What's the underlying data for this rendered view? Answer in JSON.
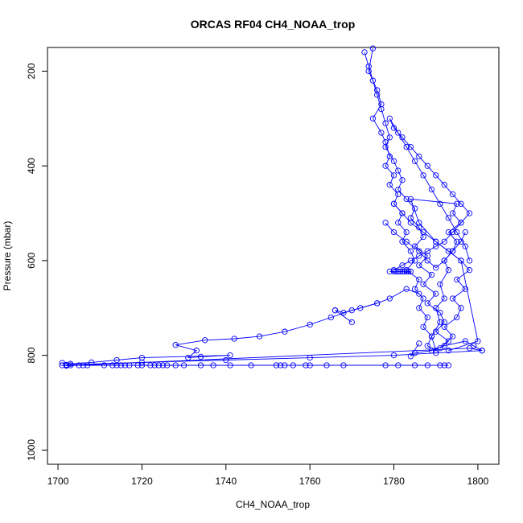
{
  "chart_data": {
    "type": "line",
    "title": "ORCAS RF04 CH4_NOAA_trop",
    "xlabel": "CH4_NOAA_trop",
    "ylabel": "Pressure (mbar)",
    "xlim": [
      1697.5,
      1805
    ],
    "ylim": [
      150,
      1030
    ],
    "y_reversed": true,
    "x_ticks": [
      1700,
      1720,
      1740,
      1760,
      1780,
      1800
    ],
    "y_ticks": [
      200,
      400,
      600,
      800,
      1000
    ],
    "grid": false,
    "legend": "none",
    "series_color": "#0000ff",
    "series": [
      {
        "x": [
          1775,
          1774,
          1776,
          1777,
          1775,
          1777,
          1778,
          1779,
          1778,
          1780,
          1779,
          1781,
          1780,
          1782,
          1781,
          1783,
          1782,
          1784,
          1785,
          1783,
          1786,
          1785,
          1787,
          1786,
          1788,
          1787,
          1789,
          1788,
          1790,
          1789,
          1791,
          1790,
          1792,
          1791,
          1793,
          1792,
          1794,
          1795,
          1793,
          1796,
          1794,
          1795,
          1784,
          1786,
          1790,
          1796,
          1800,
          1793
        ],
        "y": [
          152,
          200,
          240,
          270,
          300,
          330,
          350,
          380,
          400,
          420,
          440,
          460,
          480,
          500,
          520,
          540,
          560,
          580,
          600,
          620,
          640,
          660,
          680,
          700,
          720,
          740,
          760,
          780,
          790,
          760,
          730,
          700,
          680,
          650,
          620,
          600,
          580,
          560,
          540,
          520,
          500,
          480,
          470,
          520,
          560,
          600,
          770,
          790
        ]
      },
      {
        "x": [
          1773,
          1774,
          1775,
          1776,
          1777,
          1778,
          1779,
          1778,
          1780,
          1781,
          1782,
          1781,
          1783,
          1785,
          1784,
          1786,
          1787,
          1785,
          1788,
          1786,
          1789,
          1787,
          1790,
          1788,
          1791,
          1792,
          1790,
          1793,
          1791,
          1794,
          1792,
          1795,
          1796,
          1794,
          1797,
          1795,
          1798,
          1796,
          1793,
          1790,
          1787,
          1784,
          1782,
          1780
        ],
        "y": [
          160,
          190,
          220,
          250,
          280,
          310,
          340,
          360,
          390,
          410,
          430,
          450,
          470,
          490,
          510,
          530,
          550,
          570,
          590,
          610,
          630,
          650,
          670,
          690,
          710,
          730,
          750,
          770,
          785,
          760,
          740,
          720,
          700,
          680,
          660,
          640,
          620,
          600,
          580,
          560,
          540,
          520,
          500,
          480
        ]
      },
      {
        "x": [
          1780,
          1782,
          1784,
          1786,
          1788,
          1790,
          1792,
          1794,
          1796,
          1798,
          1796,
          1794,
          1792,
          1790,
          1788,
          1786,
          1784,
          1782,
          1780,
          1779,
          1781,
          1783,
          1785,
          1787,
          1789,
          1791,
          1793,
          1795,
          1797,
          1798
        ],
        "y": [
          620,
          610,
          600,
          590,
          580,
          570,
          560,
          540,
          520,
          500,
          480,
          460,
          440,
          420,
          400,
          380,
          360,
          340,
          320,
          300,
          330,
          360,
          390,
          420,
          450,
          480,
          510,
          540,
          570,
          600
        ]
      },
      {
        "x": [
          1779,
          1780,
          1780.5,
          1781,
          1781.5,
          1782,
          1782.5,
          1783,
          1783.5,
          1784
        ],
        "y": [
          623,
          623,
          623,
          623,
          623,
          623,
          623,
          623,
          623,
          623
        ]
      },
      {
        "x": [
          1786,
          1783,
          1779,
          1776,
          1772,
          1768,
          1766,
          1770,
          1766
        ],
        "y": [
          670,
          660,
          680,
          690,
          700,
          710,
          705,
          730,
          705
        ]
      },
      {
        "x": [
          1776,
          1770,
          1765,
          1760,
          1754,
          1748,
          1742,
          1735,
          1728,
          1733,
          1731,
          1734,
          1741,
          1720,
          1714,
          1708,
          1703,
          1701,
          1702,
          1798,
          1801,
          1799,
          1797,
          1792,
          1789,
          1785,
          1784,
          1786
        ],
        "y": [
          690,
          705,
          720,
          735,
          750,
          760,
          765,
          768,
          778,
          790,
          805,
          803,
          800,
          805,
          810,
          815,
          818,
          816,
          822,
          785,
          790,
          780,
          770,
          780,
          790,
          795,
          802,
          775
        ]
      },
      {
        "x": [
          1701,
          1702,
          1703,
          1705,
          1706,
          1707,
          1711,
          1713,
          1714,
          1715,
          1716,
          1717,
          1719,
          1720,
          1722,
          1723,
          1724,
          1725,
          1726,
          1728,
          1730,
          1734,
          1737,
          1741,
          1746,
          1752,
          1753,
          1754,
          1756,
          1759,
          1760,
          1764,
          1768,
          1778,
          1781,
          1785,
          1788,
          1791,
          1792,
          1793
        ],
        "y": [
          821,
          821,
          821,
          821,
          821,
          821,
          821,
          821,
          821,
          821,
          821,
          821,
          821,
          821,
          821,
          821,
          821,
          821,
          821,
          821,
          821,
          821,
          821,
          821,
          821,
          821,
          821,
          821,
          821,
          821,
          821,
          821,
          821,
          821,
          821,
          821,
          821,
          821,
          821,
          821
        ]
      },
      {
        "x": [
          1801,
          1790,
          1780,
          1760,
          1740,
          1720,
          1702
        ],
        "y": [
          790,
          795,
          800,
          805,
          810,
          815,
          820
        ]
      },
      {
        "x": [
          1778,
          1780,
          1783,
          1786,
          1788,
          1790,
          1792,
          1794,
          1796,
          1797
        ],
        "y": [
          520,
          540,
          560,
          580,
          600,
          615,
          600,
          580,
          560,
          540
        ]
      }
    ]
  }
}
